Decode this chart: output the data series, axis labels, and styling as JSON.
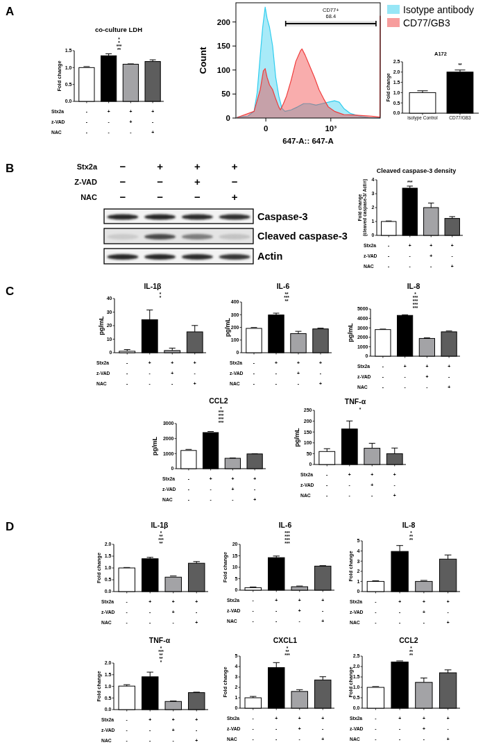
{
  "chart_data": [
    {
      "type": "other",
      "title": "A"
    },
    {
      "type": "bar",
      "title": "co-culture LDH",
      "ylabel": "Fold change",
      "xlabel": "Stx2a\nz-VAD\nNAC",
      "categories": [
        "-\n-\n-",
        "+\n-\n-",
        "+\n+\n-",
        "+\n-\n+"
      ],
      "values": [
        1.0,
        1.35,
        1.1,
        1.18
      ],
      "errors": [
        [
          1.0,
          1.03
        ],
        [
          1.35,
          1.41
        ],
        [
          1.1,
          1.11
        ],
        [
          1.18,
          1.23
        ]
      ],
      "colors": [
        "#ffffff",
        "#000000",
        "#a3a3a6",
        "#5d5d5d"
      ],
      "ylim": [
        0,
        1.5
      ],
      "yticks": [
        {
          "value": 0,
          "label": "0.0"
        },
        {
          "value": 0.5,
          "label": "0.5"
        },
        {
          "value": 1,
          "label": "1.0"
        },
        {
          "value": 1.5,
          "label": "1.5"
        }
      ],
      "annotations": [
        "*",
        "*",
        "***",
        "**"
      ]
    },
    {
      "type": "area",
      "xlabel": "647-A:: 647-A",
      "ylabel": "Count",
      "xlim": [
        -460,
        1760
      ],
      "ylim": [
        0,
        240
      ],
      "xticks": [
        {
          "value": 0,
          "label": "0"
        },
        {
          "value": 1000,
          "label": "10³"
        }
      ],
      "yticks": [
        0,
        50,
        100,
        150,
        200
      ],
      "legend": "top right",
      "bands": [
        {
          "axis": "x",
          "from": 305,
          "to": 1695,
          "label": "CD77+\n68.4"
        }
      ],
      "series": [
        {
          "name": "Isotype antibody",
          "color": "#2fcdee",
          "x": [
            -443,
            -276,
            -181,
            -133,
            -86,
            -48,
            -10,
            19,
            57,
            105,
            152,
            200,
            248,
            295,
            390,
            486,
            581,
            676,
            771,
            867,
            962,
            1057,
            1129,
            1200,
            1295,
            1438,
            1581,
            1760
          ],
          "values": [
            2,
            4,
            14,
            53,
            130,
            189,
            231,
            208,
            189,
            150,
            85,
            46,
            20,
            14,
            17,
            23,
            30,
            30,
            27,
            30,
            33,
            36,
            33,
            20,
            10,
            4,
            1,
            0
          ]
        },
        {
          "name": "CD77/GB3",
          "color": "#f03c3c",
          "x": [
            -443,
            -181,
            -86,
            -38,
            -10,
            19,
            57,
            105,
            152,
            200,
            224,
            271,
            319,
            390,
            462,
            533,
            557,
            605,
            676,
            748,
            819,
            890,
            962,
            1057,
            1200,
            1390,
            1629,
            1748,
            1755,
            1760
          ],
          "values": [
            1,
            14,
            59,
            98,
            103,
            85,
            69,
            59,
            40,
            23,
            17,
            30,
            46,
            79,
            118,
            140,
            144,
            131,
            108,
            85,
            59,
            40,
            23,
            14,
            7,
            6,
            4,
            2,
            2,
            213
          ]
        }
      ]
    },
    {
      "type": "bar",
      "title": "A172",
      "ylabel": "Fold change",
      "categories": [
        "isotype Control",
        "CD77/GB3"
      ],
      "values": [
        1.0,
        2.0
      ],
      "errors": [
        [
          1.0,
          1.09
        ],
        [
          2.0,
          2.1
        ]
      ],
      "colors": [
        "#ffffff",
        "#000000"
      ],
      "ylim": [
        0,
        2.5
      ],
      "yticks": [
        {
          "value": 0,
          "label": "0.0"
        },
        {
          "value": 0.5,
          "label": "0.5"
        },
        {
          "value": 1,
          "label": "1.0"
        },
        {
          "value": 1.5,
          "label": "1.5"
        },
        {
          "value": 2,
          "label": "2.0"
        },
        {
          "value": 2.5,
          "label": "2.5"
        }
      ],
      "annotations": [
        {
          "text": "**",
          "x": "CD77/GB3",
          "y": 2.25
        }
      ]
    },
    {
      "type": "other",
      "title": "B"
    },
    {
      "type": "other",
      "xlabel": "Stx2a\nZ-VAD\nNAC",
      "categories": [
        "−\n−\n−",
        "+\n−\n−",
        "+\n+\n−",
        "+\n−\n+"
      ],
      "annotations": [
        "Caspase-3",
        "Cleaved caspase-3",
        "Actin"
      ]
    },
    {
      "type": "bar",
      "title": "Cleaved caspase-3 density",
      "ylabel": "Fold change\n(cleaved caspase-3/ Actin)",
      "xlabel": "Stx2a\nz-VAD\nNAC",
      "categories": [
        "-\n-\n-",
        "+\n-\n-",
        "+\n+\n-",
        "+\n-\n+"
      ],
      "values": [
        1.0,
        3.4,
        2.0,
        1.22
      ],
      "errors": [
        [
          1.0,
          1.04
        ],
        [
          3.4,
          3.55
        ],
        [
          2.0,
          2.33
        ],
        [
          1.22,
          1.35
        ]
      ],
      "colors": [
        "#ffffff",
        "#000000",
        "#a3a3a6",
        "#5d5d5d"
      ],
      "ylim": [
        0,
        4
      ],
      "yticks": [
        0,
        1,
        2,
        3,
        4
      ],
      "annotations": [
        {
          "text": "***",
          "x": "+\n-\n-",
          "y": 3.7
        }
      ]
    },
    {
      "type": "other",
      "title": "C"
    },
    {
      "type": "bar",
      "title": "IL-1β",
      "ylabel": "pg/mL",
      "xlabel": "Stx2a\nz-VAD\nNAC",
      "categories": [
        "-\n-\n-",
        "+\n-\n-",
        "+\n+\n-",
        "+\n-\n+"
      ],
      "values": [
        1.1,
        24.4,
        1.6,
        15.4
      ],
      "errors": [
        [
          1.1,
          2.3
        ],
        [
          24.4,
          31.6
        ],
        [
          1.6,
          3.4
        ],
        [
          15.4,
          20.1
        ]
      ],
      "colors": [
        "#ffffff",
        "#000000",
        "#a3a3a6",
        "#5d5d5d"
      ],
      "ylim": [
        0,
        40
      ],
      "yticks": [
        0,
        10,
        20,
        30,
        40
      ],
      "annotations": [
        "*",
        "*"
      ]
    },
    {
      "type": "bar",
      "title": "IL-6",
      "ylabel": "pg/mL",
      "xlabel": "Stx2a\nz-VAD\nNAC",
      "categories": [
        "-\n-\n-",
        "+\n-\n-",
        "+\n+\n-",
        "+\n-\n+"
      ],
      "values": [
        192,
        298,
        151,
        188
      ],
      "errors": [
        [
          192,
          199
        ],
        [
          298,
          312
        ],
        [
          151,
          169
        ],
        [
          188,
          194
        ]
      ],
      "colors": [
        "#ffffff",
        "#000000",
        "#a3a3a6",
        "#5d5d5d"
      ],
      "ylim": [
        0,
        400
      ],
      "yticks": [
        0,
        100,
        200,
        300,
        400
      ],
      "annotations": [
        "**",
        "***",
        "**"
      ]
    },
    {
      "type": "bar",
      "title": "IL-8",
      "ylabel": "pg/mL",
      "xlabel": "Stx2a\nz-VAD\nNAC",
      "categories": [
        "-\n-\n-",
        "+\n-\n-",
        "+\n+\n-",
        "+\n-\n+"
      ],
      "values": [
        2820,
        4320,
        1880,
        2580
      ],
      "errors": [
        [
          2820,
          2870
        ],
        [
          4320,
          4380
        ],
        [
          1880,
          1940
        ],
        [
          2580,
          2670
        ]
      ],
      "colors": [
        "#ffffff",
        "#000000",
        "#a3a3a6",
        "#5d5d5d"
      ],
      "ylim": [
        0,
        5000
      ],
      "yticks": [
        0,
        1000,
        2000,
        3000,
        4000,
        5000
      ],
      "annotations": [
        "*",
        "***",
        "***",
        "***",
        "***"
      ]
    },
    {
      "type": "bar",
      "title": "CCL2",
      "ylabel": "pg/mL",
      "xlabel": "Stx2a\nz-VAD\nNAC",
      "categories": [
        "-\n-\n-",
        "+\n-\n-",
        "+\n+\n-",
        "+\n-\n+"
      ],
      "values": [
        1210,
        2400,
        690,
        980
      ],
      "errors": [
        [
          1210,
          1280
        ],
        [
          2400,
          2470
        ],
        [
          690,
          710
        ],
        [
          980,
          995
        ]
      ],
      "colors": [
        "#ffffff",
        "#000000",
        "#a3a3a6",
        "#5d5d5d"
      ],
      "ylim": [
        0,
        3000
      ],
      "yticks": [
        0,
        1000,
        2000,
        3000
      ],
      "annotations": [
        "*",
        "***",
        "***",
        "***",
        "***"
      ]
    },
    {
      "type": "bar",
      "title": "TNF-α",
      "ylabel": "pg/mL",
      "xlabel": "Stx2a\nz-VAD\nNAC",
      "categories": [
        "-\n-\n-",
        "+\n-\n-",
        "+\n+\n-",
        "+\n-\n+"
      ],
      "values": [
        60,
        164,
        75,
        50
      ],
      "errors": [
        [
          60,
          73
        ],
        [
          164,
          201
        ],
        [
          75,
          98
        ],
        [
          50,
          76
        ]
      ],
      "colors": [
        "#ffffff",
        "#000000",
        "#a3a3a6",
        "#5d5d5d"
      ],
      "ylim": [
        0,
        250
      ],
      "yticks": [
        0,
        50,
        100,
        150,
        200,
        250
      ],
      "annotations": [
        "*"
      ]
    },
    {
      "type": "other",
      "title": "D"
    },
    {
      "type": "bar",
      "title": "IL-1β",
      "ylabel": "Fold change",
      "xlabel": "Stx2a\nz-VAD\nNAC",
      "categories": [
        "-\n-\n-",
        "+\n-\n-",
        "+\n+\n-",
        "+\n-\n+"
      ],
      "values": [
        1.0,
        1.39,
        0.61,
        1.2
      ],
      "errors": [
        [
          1.0,
          1.02
        ],
        [
          1.39,
          1.45
        ],
        [
          0.61,
          0.66
        ],
        [
          1.2,
          1.27
        ]
      ],
      "colors": [
        "#ffffff",
        "#000000",
        "#a3a3a6",
        "#5d5d5d"
      ],
      "ylim": [
        0,
        2
      ],
      "yticks": [
        {
          "value": 0,
          "label": "0.0"
        },
        {
          "value": 0.5,
          "label": "0.5"
        },
        {
          "value": 1,
          "label": "1.0"
        },
        {
          "value": 1.5,
          "label": "1.5"
        },
        {
          "value": 2,
          "label": "2.0"
        }
      ],
      "annotations": [
        "*",
        "**",
        "***",
        "**"
      ]
    },
    {
      "type": "bar",
      "title": "IL-6",
      "ylabel": "Fold change",
      "xlabel": "Stx2a\nz-VAD\nNAC",
      "categories": [
        "-\n-\n-",
        "+\n-\n-",
        "+\n+\n-",
        "+\n-\n+"
      ],
      "values": [
        1.1,
        14.2,
        1.5,
        10.5
      ],
      "errors": [
        [
          1.1,
          1.4
        ],
        [
          14.2,
          14.9
        ],
        [
          1.5,
          1.8
        ],
        [
          10.5,
          10.7
        ]
      ],
      "colors": [
        "#ffffff",
        "#000000",
        "#a3a3a6",
        "#5d5d5d"
      ],
      "ylim": [
        0,
        20
      ],
      "yticks": [
        0,
        5,
        10,
        15,
        20
      ],
      "annotations": [
        "***",
        "***",
        "***",
        "***"
      ]
    },
    {
      "type": "bar",
      "title": "IL-8",
      "ylabel": "Fold change",
      "xlabel": "Stx2a\nz-VAD\nNAC",
      "categories": [
        "-\n-\n-",
        "+\n-\n-",
        "+\n+\n-",
        "+\n-\n+"
      ],
      "values": [
        1.0,
        3.96,
        1.0,
        3.2
      ],
      "errors": [
        [
          1.0,
          1.07
        ],
        [
          3.96,
          4.54
        ],
        [
          1.0,
          1.1
        ],
        [
          3.2,
          3.61
        ]
      ],
      "colors": [
        "#ffffff",
        "#000000",
        "#a3a3a6",
        "#5d5d5d"
      ],
      "ylim": [
        0,
        5
      ],
      "yticks": [
        0,
        1,
        2,
        3,
        4,
        5
      ],
      "annotations": [
        "*",
        "**",
        "**"
      ]
    },
    {
      "type": "bar",
      "title": "TNF-α",
      "ylabel": "Fold change",
      "xlabel": "Stx2a\nz-VAD\nNAC",
      "categories": [
        "-\n-\n-",
        "+\n-\n-",
        "+\n+\n-",
        "+\n-\n+"
      ],
      "values": [
        1.01,
        1.41,
        0.35,
        0.73
      ],
      "errors": [
        [
          1.01,
          1.07
        ],
        [
          1.41,
          1.61
        ],
        [
          0.35,
          0.37
        ],
        [
          0.73,
          0.75
        ]
      ],
      "colors": [
        "#ffffff",
        "#000000",
        "#a3a3a6",
        "#5d5d5d"
      ],
      "ylim": [
        0,
        2
      ],
      "yticks": [
        {
          "value": 0,
          "label": "0.0"
        },
        {
          "value": 0.5,
          "label": "0.5"
        },
        {
          "value": 1,
          "label": "1.0"
        },
        {
          "value": 1.5,
          "label": "1.5"
        },
        {
          "value": 2,
          "label": "2.0"
        }
      ],
      "annotations": [
        "*",
        "***",
        "**",
        "**",
        "*"
      ]
    },
    {
      "type": "bar",
      "title": "CXCL1",
      "ylabel": "Fold change",
      "xlabel": "Stx2a\nz-VAD\nNAC",
      "categories": [
        "-\n-\n-",
        "+\n-\n-",
        "+\n+\n-",
        "+\n-\n+"
      ],
      "values": [
        1.0,
        3.9,
        1.61,
        2.71
      ],
      "errors": [
        [
          1.0,
          1.13
        ],
        [
          3.9,
          4.38
        ],
        [
          1.61,
          1.78
        ],
        [
          2.71,
          3.02
        ]
      ],
      "colors": [
        "#ffffff",
        "#000000",
        "#a3a3a6",
        "#5d5d5d"
      ],
      "ylim": [
        0,
        5
      ],
      "yticks": [
        0,
        1,
        2,
        3,
        4,
        5
      ],
      "annotations": [
        "*",
        "**",
        "***"
      ]
    },
    {
      "type": "bar",
      "title": "CCL2",
      "ylabel": "Fold change",
      "xlabel": "Stx2a\nz-VAD\nNAC",
      "categories": [
        "-\n-\n-",
        "+\n-\n-",
        "+\n+\n-",
        "+\n-\n+"
      ],
      "values": [
        1.0,
        2.22,
        1.24,
        1.7
      ],
      "errors": [
        [
          1.0,
          1.04
        ],
        [
          2.22,
          2.27
        ],
        [
          1.24,
          1.45
        ],
        [
          1.7,
          1.84
        ]
      ],
      "colors": [
        "#ffffff",
        "#000000",
        "#a3a3a6",
        "#5d5d5d"
      ],
      "ylim": [
        0,
        2.5
      ],
      "yticks": [
        {
          "value": 0,
          "label": "0.0"
        },
        {
          "value": 0.5,
          "label": "0.5"
        },
        {
          "value": 1,
          "label": "1.0"
        },
        {
          "value": 1.5,
          "label": "1.5"
        },
        {
          "value": 2,
          "label": "2.0"
        },
        {
          "value": 2.5,
          "label": "2.5"
        }
      ],
      "annotations": [
        "*",
        "**",
        "**"
      ]
    }
  ]
}
